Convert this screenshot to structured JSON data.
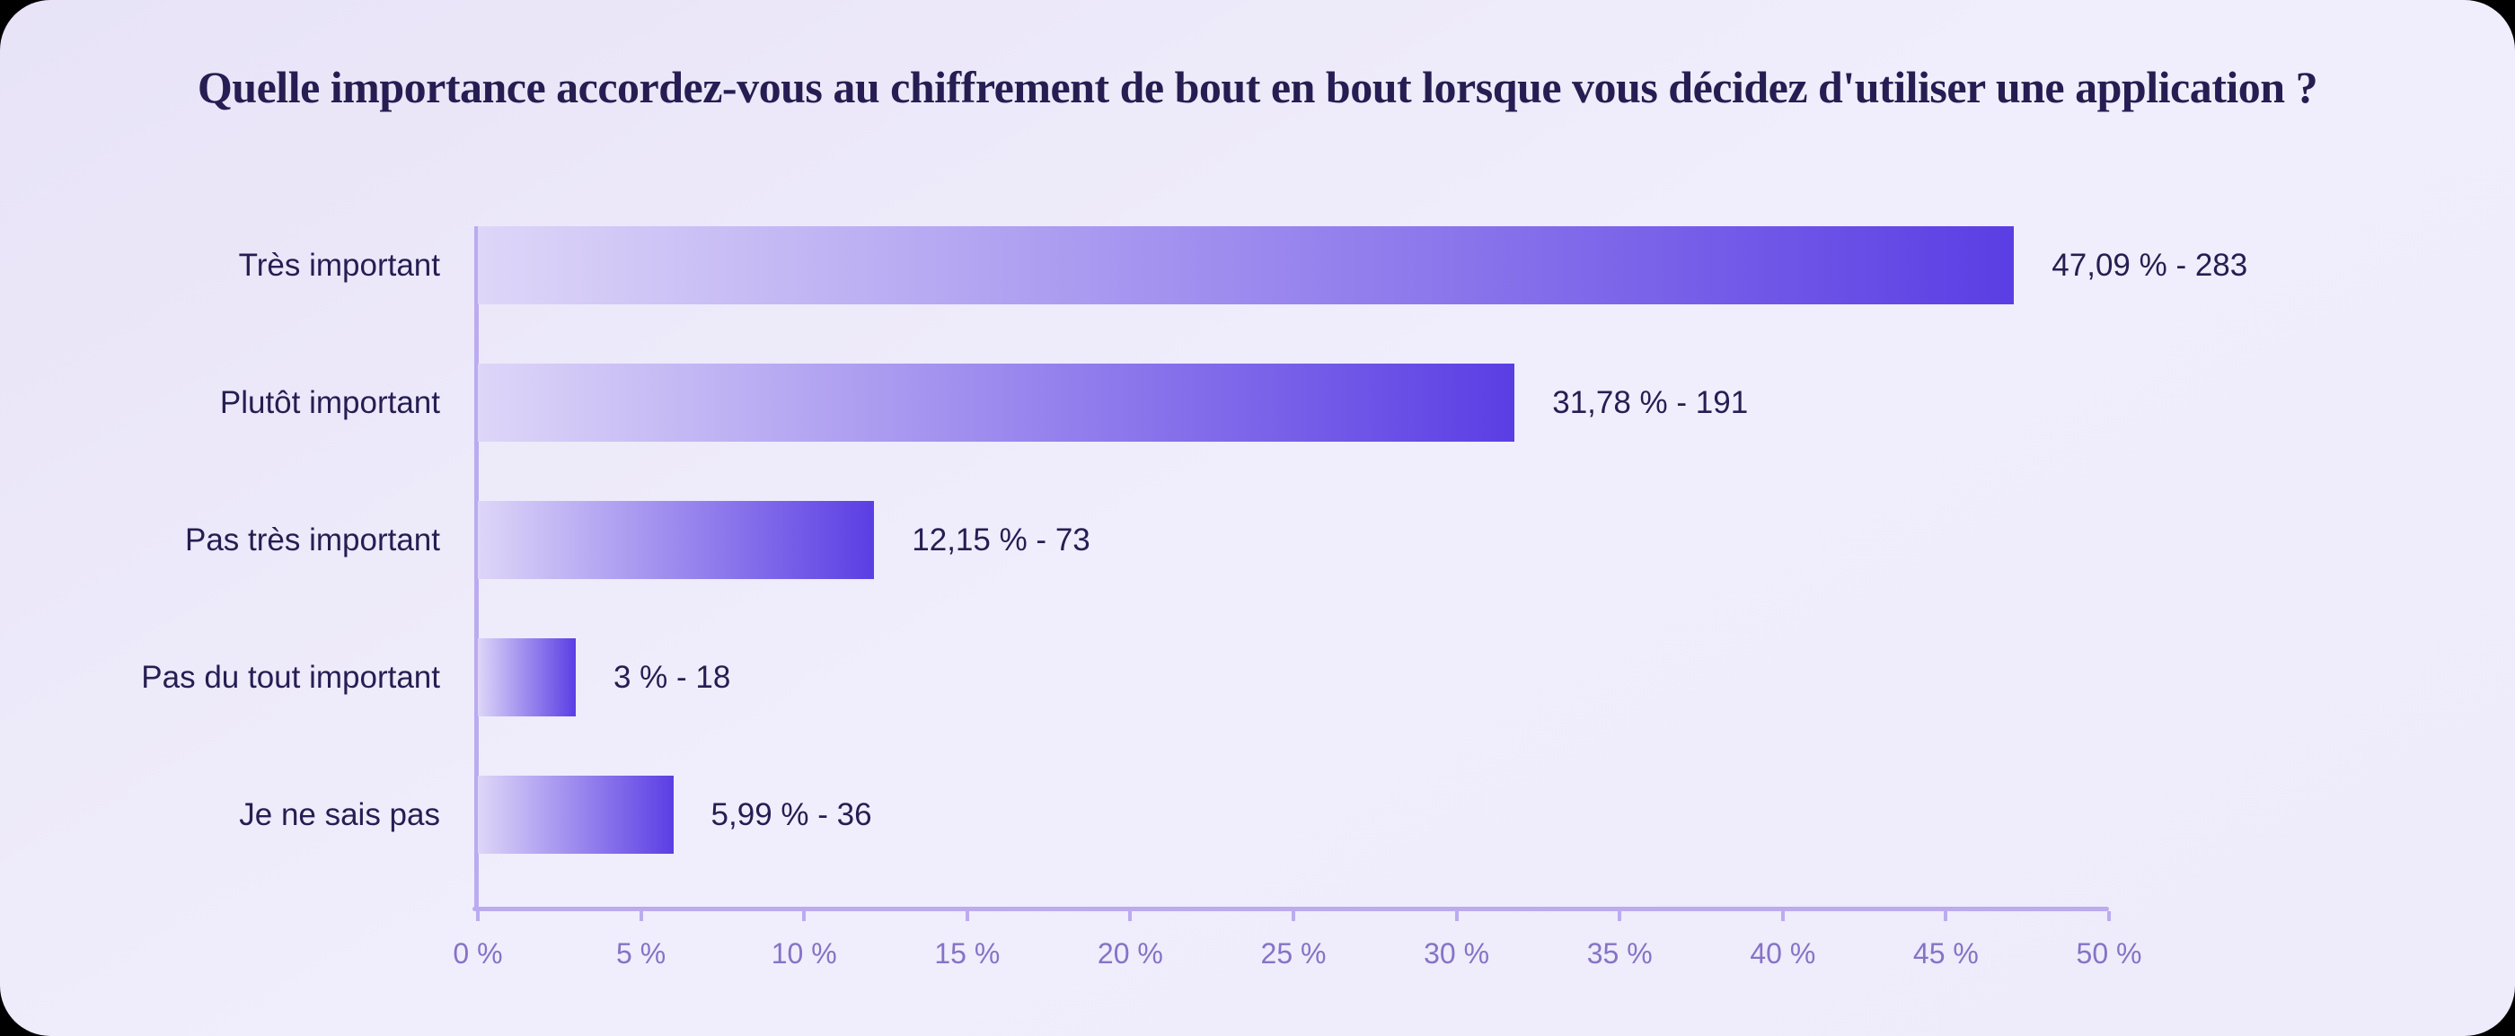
{
  "title": "Quelle importance accordez-vous au chiffrement de bout en bout lorsque vous décidez d'utiliser une application ?",
  "chart_data": {
    "type": "bar",
    "orientation": "horizontal",
    "title": "Quelle importance accordez-vous au chiffrement de bout en bout lorsque vous décidez d'utiliser une application ?",
    "categories": [
      "Très important",
      "Plutôt important",
      "Pas très important",
      "Pas du tout important",
      "Je ne sais pas"
    ],
    "values_pct": [
      47.09,
      31.78,
      12.15,
      3,
      5.99
    ],
    "counts": [
      283,
      191,
      73,
      18,
      36
    ],
    "value_labels": [
      "47,09 % - 283",
      "31,78 % - 191",
      "12,15 % - 73",
      "3 % - 18",
      "5,99 % - 36"
    ],
    "xlabel": "",
    "ylabel": "",
    "xlim": [
      0,
      50
    ],
    "x_tick_step": 5,
    "x_tick_labels": [
      "0 %",
      "5 %",
      "10 %",
      "15 %",
      "20 %",
      "25 %",
      "30 %",
      "35 %",
      "40 %",
      "45 %",
      "50 %"
    ],
    "grid": false,
    "legend": false,
    "colors": {
      "bar_gradient_start": "#ded6f8",
      "bar_gradient_end": "#5b3ee4",
      "axis_line": "#bcabef",
      "tick_label": "#8673c6",
      "text": "#261e52",
      "card_background": "#efecfb",
      "page_background": "#000000"
    }
  }
}
